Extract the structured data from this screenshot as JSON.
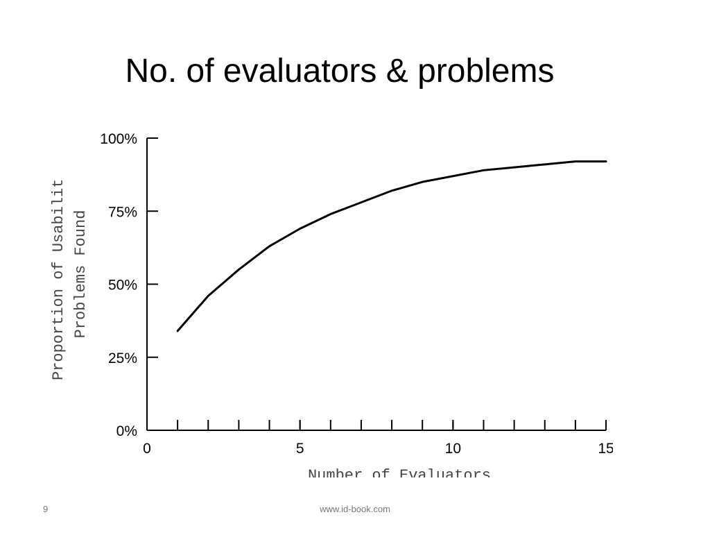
{
  "slide_title": "No. of evaluators & problems",
  "chart_data": {
    "type": "line",
    "x": [
      1,
      2,
      3,
      4,
      5,
      6,
      7,
      8,
      9,
      10,
      11,
      12,
      13,
      14,
      15
    ],
    "series": [
      {
        "color": "#000000",
        "values": [
          34,
          46,
          55,
          63,
          69,
          74,
          78,
          82,
          85,
          87,
          89,
          90,
          91,
          92,
          92
        ]
      }
    ],
    "xlim": [
      0,
      15
    ],
    "xticks": [
      0,
      5,
      10,
      15
    ],
    "xminorticks": [
      1,
      2,
      3,
      4,
      5,
      6,
      7,
      8,
      9,
      10,
      11,
      12,
      13,
      14,
      15
    ],
    "ylim": [
      0,
      100
    ],
    "yticks": [
      {
        "value": 0,
        "label": "0%"
      },
      {
        "value": 25,
        "label": "25%"
      },
      {
        "value": 50,
        "label": "50%"
      },
      {
        "value": 75,
        "label": "75%"
      },
      {
        "value": 100,
        "label": "100%"
      }
    ],
    "ylabel": [
      "Proportion of Usabilit",
      "Problems Found"
    ],
    "xlabel": "Number of Evaluators"
  },
  "footer": {
    "page": "9",
    "url": "www.id-book.com"
  }
}
